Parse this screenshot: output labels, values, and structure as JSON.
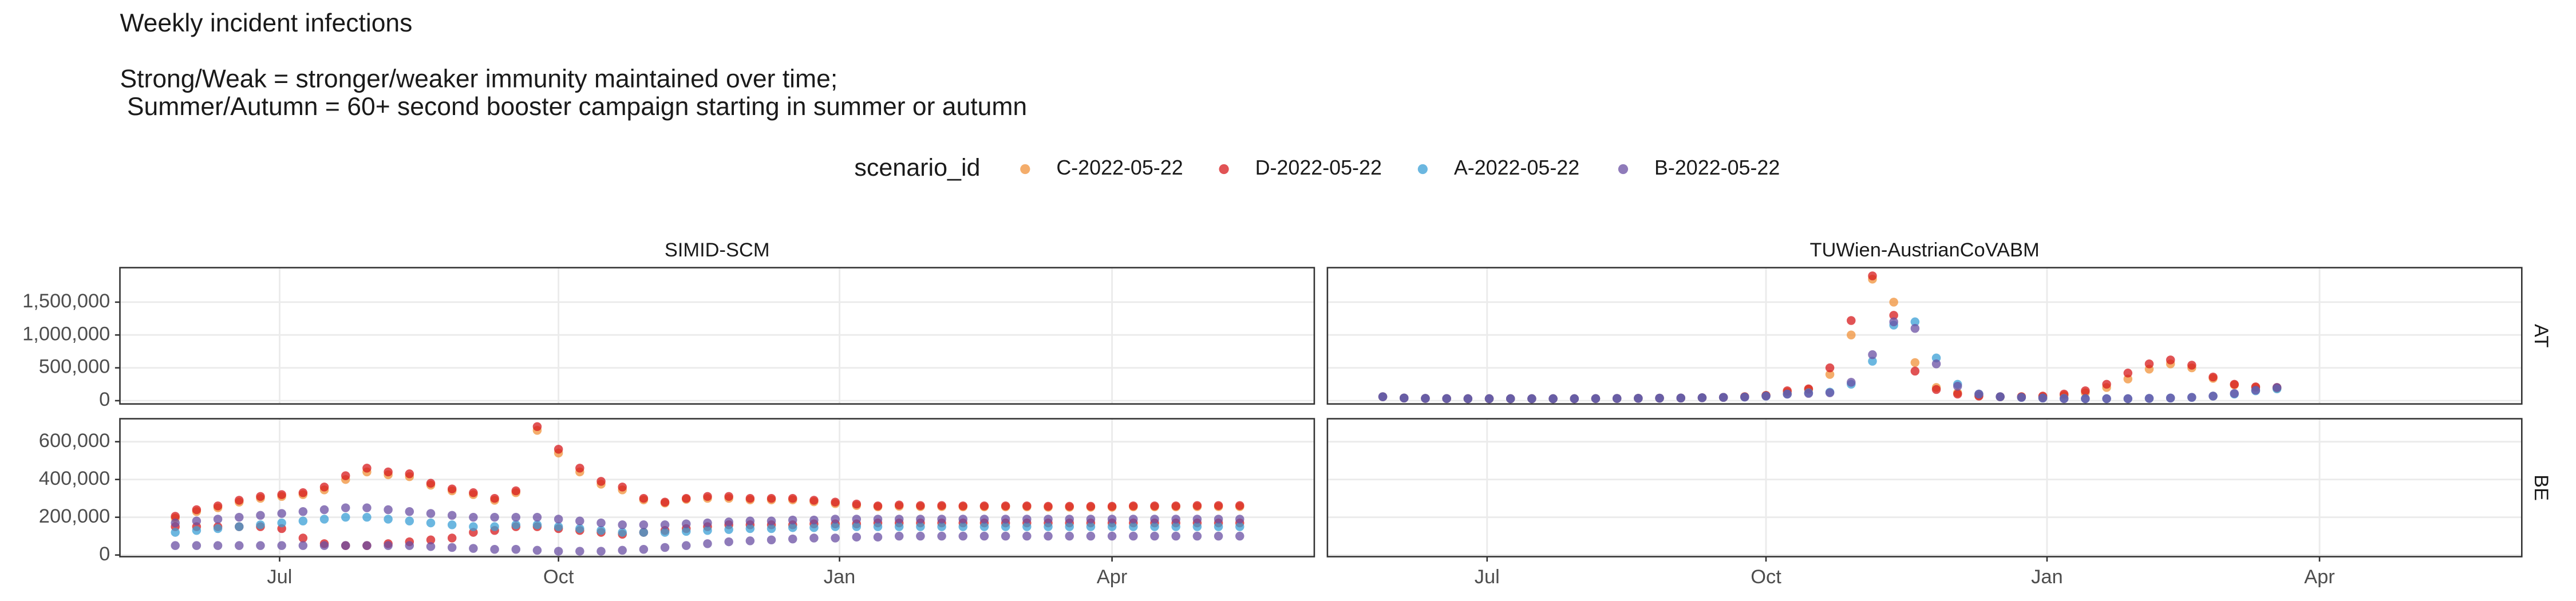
{
  "chart_data": {
    "type": "scatter",
    "title": "Weekly incident infections",
    "subtitle": [
      "Strong/Weak = stronger/weaker immunity maintained over time;",
      " Summer/Autumn = 60+ second booster campaign starting in summer or autumn"
    ],
    "legend_title": "scenario_id",
    "legend": [
      {
        "name": "C-2022-05-22",
        "color": "#f0923a"
      },
      {
        "name": "D-2022-05-22",
        "color": "#d7191c"
      },
      {
        "name": "A-2022-05-22",
        "color": "#3a9fd6"
      },
      {
        "name": "B-2022-05-22",
        "color": "#6a4fa3"
      }
    ],
    "columns": [
      "SIMID-SCM",
      "TUWien-AustrianCoVABM"
    ],
    "rows": [
      {
        "label": "AT",
        "ylim": [
          -50000,
          2025000
        ],
        "yticks": [
          0,
          {
            "value": 500000,
            "label": "500,000"
          },
          {
            "value": 1000000,
            "label": "1,000,000"
          },
          {
            "value": 1500000,
            "label": "1,500,000"
          }
        ]
      },
      {
        "label": "BE",
        "ylim": [
          -8700,
          721700
        ],
        "yticks": [
          0,
          {
            "value": 200000,
            "label": "200,000"
          },
          {
            "value": 400000,
            "label": "400,000"
          },
          {
            "value": 600000,
            "label": "600,000"
          }
        ]
      }
    ],
    "xlim": [
      -2.6,
      53.5
    ],
    "xticks": [
      {
        "value": 4.9,
        "label": "Jul"
      },
      {
        "value": 18.0,
        "label": "Oct"
      },
      {
        "value": 31.2,
        "label": "Jan"
      },
      {
        "value": 44.0,
        "label": "Apr"
      }
    ],
    "grid": true,
    "panels": [
      [
        {
          "series": []
        },
        {
          "x": [
            0,
            1,
            2,
            3,
            4,
            5,
            6,
            7,
            8,
            9,
            10,
            11,
            12,
            13,
            14,
            15,
            16,
            17,
            18,
            19,
            20,
            21,
            22,
            23,
            24,
            25,
            26,
            27,
            28,
            29,
            30,
            31,
            32,
            33,
            34,
            35,
            36,
            37,
            38,
            39,
            40,
            41,
            42
          ],
          "series": [
            {
              "name": "C-2022-05-22",
              "color": "#f0923a",
              "values": [
                60000,
                40000,
                35000,
                32000,
                30000,
                30000,
                30000,
                30000,
                30000,
                30000,
                32000,
                34000,
                36000,
                38000,
                40000,
                45000,
                50000,
                60000,
                80000,
                130000,
                170000,
                400000,
                1000000,
                1850000,
                1500000,
                580000,
                200000,
                120000,
                80000,
                60000,
                60000,
                60000,
                80000,
                120000,
                200000,
                330000,
                480000,
                560000,
                500000,
                340000,
                240000,
                200000,
                190000
              ]
            },
            {
              "name": "D-2022-05-22",
              "color": "#d7191c",
              "values": [
                60000,
                40000,
                35000,
                32000,
                30000,
                30000,
                30000,
                30000,
                30000,
                30000,
                32000,
                34000,
                36000,
                38000,
                40000,
                45000,
                50000,
                60000,
                80000,
                150000,
                180000,
                500000,
                1220000,
                1900000,
                1300000,
                450000,
                170000,
                100000,
                70000,
                60000,
                60000,
                70000,
                100000,
                150000,
                250000,
                420000,
                560000,
                620000,
                540000,
                360000,
                250000,
                210000,
                200000
              ]
            },
            {
              "name": "A-2022-05-22",
              "color": "#3a9fd6",
              "values": [
                60000,
                40000,
                35000,
                32000,
                30000,
                30000,
                30000,
                30000,
                30000,
                30000,
                32000,
                34000,
                36000,
                38000,
                40000,
                45000,
                50000,
                55000,
                70000,
                100000,
                120000,
                130000,
                250000,
                600000,
                1150000,
                1200000,
                650000,
                250000,
                100000,
                60000,
                50000,
                40000,
                35000,
                30000,
                30000,
                30000,
                35000,
                40000,
                50000,
                70000,
                100000,
                150000,
                180000
              ]
            },
            {
              "name": "B-2022-05-22",
              "color": "#6a4fa3",
              "values": [
                60000,
                40000,
                35000,
                32000,
                30000,
                30000,
                30000,
                30000,
                30000,
                30000,
                32000,
                34000,
                36000,
                38000,
                40000,
                45000,
                50000,
                55000,
                70000,
                100000,
                110000,
                120000,
                280000,
                700000,
                1200000,
                1100000,
                560000,
                220000,
                100000,
                60000,
                50000,
                40000,
                30000,
                30000,
                30000,
                30000,
                35000,
                40000,
                50000,
                70000,
                110000,
                160000,
                200000
              ]
            }
          ]
        }
      ],
      [
        {
          "x": [
            0,
            1,
            2,
            3,
            4,
            5,
            6,
            7,
            8,
            9,
            10,
            11,
            12,
            13,
            14,
            15,
            16,
            17,
            18,
            19,
            20,
            21,
            22,
            23,
            24,
            25,
            26,
            27,
            28,
            29,
            30,
            31,
            32,
            33,
            34,
            35,
            36,
            37,
            38,
            39,
            40,
            41,
            42,
            43,
            44,
            45,
            46,
            47,
            48,
            49,
            50
          ],
          "series": [
            {
              "name": "C-2022-05-22",
              "color": "#f0923a",
              "values": [
                195000,
                230000,
                250000,
                280000,
                300000,
                310000,
                320000,
                345000,
                400000,
                440000,
                425000,
                415000,
                370000,
                340000,
                320000,
                290000,
                330000,
                660000,
                540000,
                440000,
                375000,
                345000,
                292000,
                275000,
                295000,
                300000,
                300000,
                292000,
                292000,
                292000,
                282000,
                272000,
                262000,
                255000,
                258000,
                256000,
                256000,
                255000,
                255000,
                255000,
                255000,
                253000,
                253000,
                253000,
                253000,
                255000,
                255000,
                255000,
                256000,
                256000,
                256000
              ]
            },
            {
              "name": "D-2022-05-22",
              "color": "#d7191c",
              "values": [
                205000,
                240000,
                260000,
                290000,
                310000,
                320000,
                330000,
                360000,
                420000,
                460000,
                440000,
                430000,
                380000,
                350000,
                330000,
                300000,
                340000,
                680000,
                560000,
                460000,
                390000,
                360000,
                300000,
                280000,
                300000,
                310000,
                310000,
                300000,
                300000,
                300000,
                290000,
                280000,
                270000,
                260000,
                265000,
                262000,
                262000,
                260000,
                260000,
                260000,
                260000,
                258000,
                258000,
                258000,
                258000,
                260000,
                260000,
                260000,
                262000,
                262000,
                262000
              ]
            },
            {
              "name": "D-2022-05-22",
              "color": "#d7191c",
              "values": [
                150000,
                150000,
                150000,
                150000,
                150000,
                140000,
                90000,
                60000,
                50000,
                50000,
                60000,
                70000,
                80000,
                90000,
                120000,
                130000,
                150000,
                150000,
                140000,
                130000,
                120000,
                110000,
                120000,
                130000,
                140000,
                150000,
                160000,
                160000,
                160000,
                160000,
                165000,
                165000,
                165000,
                170000,
                170000,
                170000,
                170000,
                170000,
                170000,
                170000,
                170000,
                170000,
                170000,
                170000,
                170000,
                170000,
                170000,
                170000,
                170000,
                170000,
                170000
              ]
            },
            {
              "name": "A-2022-05-22",
              "color": "#3a9fd6",
              "values": [
                120000,
                130000,
                140000,
                150000,
                160000,
                170000,
                180000,
                190000,
                200000,
                200000,
                190000,
                180000,
                170000,
                160000,
                150000,
                150000,
                160000,
                160000,
                150000,
                140000,
                130000,
                120000,
                120000,
                120000,
                125000,
                130000,
                135000,
                140000,
                140000,
                145000,
                145000,
                150000,
                150000,
                150000,
                150000,
                150000,
                150000,
                150000,
                150000,
                150000,
                150000,
                150000,
                150000,
                150000,
                150000,
                150000,
                150000,
                150000,
                150000,
                150000,
                150000
              ]
            },
            {
              "name": "B-2022-05-22",
              "color": "#6a4fa3",
              "values": [
                170000,
                180000,
                190000,
                200000,
                210000,
                220000,
                230000,
                240000,
                250000,
                250000,
                240000,
                230000,
                220000,
                210000,
                200000,
                200000,
                200000,
                200000,
                190000,
                180000,
                170000,
                160000,
                160000,
                160000,
                165000,
                170000,
                175000,
                180000,
                180000,
                185000,
                185000,
                190000,
                190000,
                190000,
                190000,
                190000,
                190000,
                190000,
                190000,
                190000,
                190000,
                190000,
                190000,
                190000,
                190000,
                190000,
                190000,
                190000,
                190000,
                190000,
                190000
              ]
            },
            {
              "name": "B-2022-05-22",
              "color": "#6a4fa3",
              "values": [
                50000,
                50000,
                50000,
                50000,
                50000,
                50000,
                50000,
                50000,
                50000,
                50000,
                50000,
                50000,
                45000,
                40000,
                35000,
                30000,
                30000,
                25000,
                20000,
                20000,
                20000,
                25000,
                30000,
                40000,
                50000,
                60000,
                70000,
                75000,
                80000,
                85000,
                90000,
                90000,
                95000,
                95000,
                100000,
                100000,
                100000,
                100000,
                100000,
                100000,
                100000,
                100000,
                100000,
                100000,
                100000,
                100000,
                100000,
                100000,
                100000,
                100000,
                100000
              ]
            }
          ]
        },
        {
          "series": []
        }
      ]
    ]
  }
}
